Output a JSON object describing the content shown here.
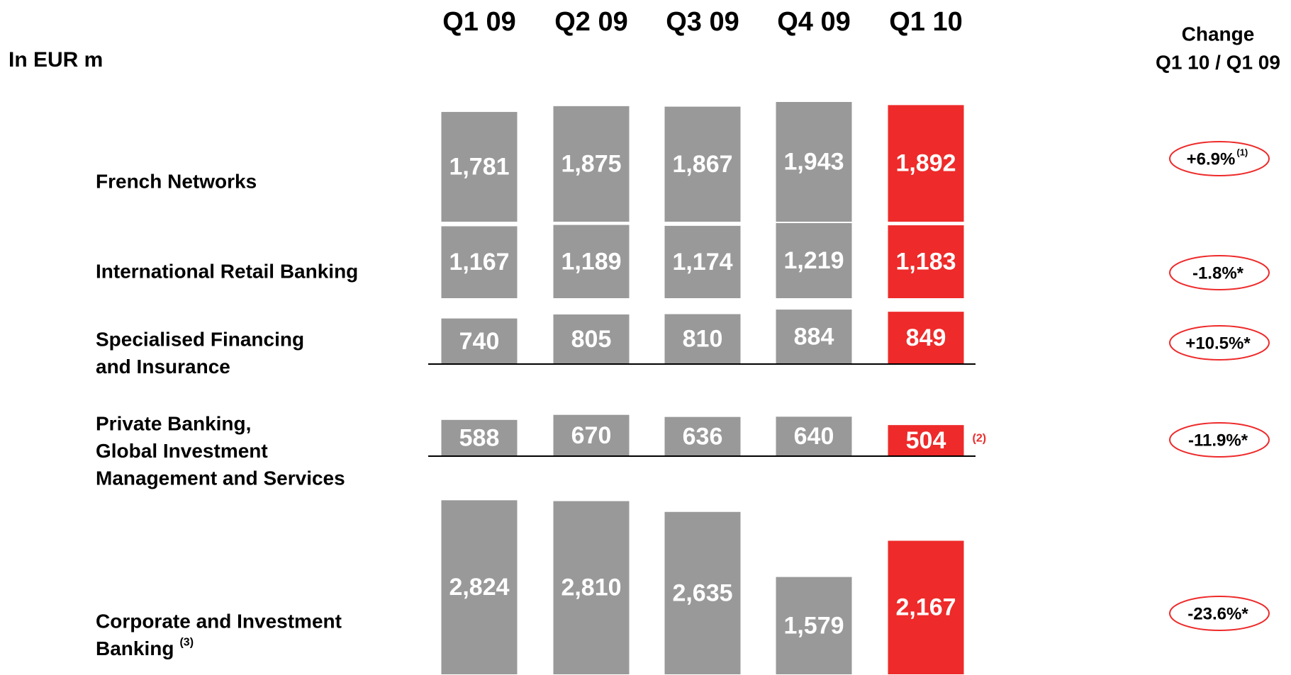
{
  "chart_data": {
    "type": "bar",
    "title": "In EUR m",
    "change_header": [
      "Change",
      "Q1 10 / Q1 09"
    ],
    "categories": [
      "Q1 09",
      "Q2 09",
      "Q3 09",
      "Q4 09",
      "Q1 10"
    ],
    "color": "#999999",
    "highlight_color": "#ee2a2a",
    "series": [
      {
        "name": [
          "French Networks"
        ],
        "values": [
          1781,
          1875,
          1867,
          1943,
          1892
        ],
        "value_labels": [
          "1,781",
          "1,875",
          "1,867",
          "1,943",
          "1,892"
        ],
        "change": "+6.9%",
        "change_note": "(1)"
      },
      {
        "name": [
          "International Retail Banking"
        ],
        "values": [
          1167,
          1189,
          1174,
          1219,
          1183
        ],
        "value_labels": [
          "1,167",
          "1,189",
          "1,174",
          "1,219",
          "1,183"
        ],
        "change": "-1.8%*"
      },
      {
        "name": [
          "Specialised Financing",
          "and Insurance"
        ],
        "values": [
          740,
          805,
          810,
          884,
          849
        ],
        "change": "+10.5%*"
      },
      {
        "name": [
          "Private Banking,",
          "Global Investment",
          "Management and Services"
        ],
        "values": [
          588,
          670,
          636,
          640,
          504
        ],
        "value_note": "(2)",
        "change": "-11.9%*"
      },
      {
        "name": [
          "Corporate and Investment",
          "Banking"
        ],
        "name_note": "(3)",
        "values": [
          2824,
          2810,
          2635,
          1579,
          2167
        ],
        "value_labels": [
          "2,824",
          "2,810",
          "2,635",
          "1,579",
          "2,167"
        ],
        "change": "-23.6%*"
      }
    ]
  }
}
